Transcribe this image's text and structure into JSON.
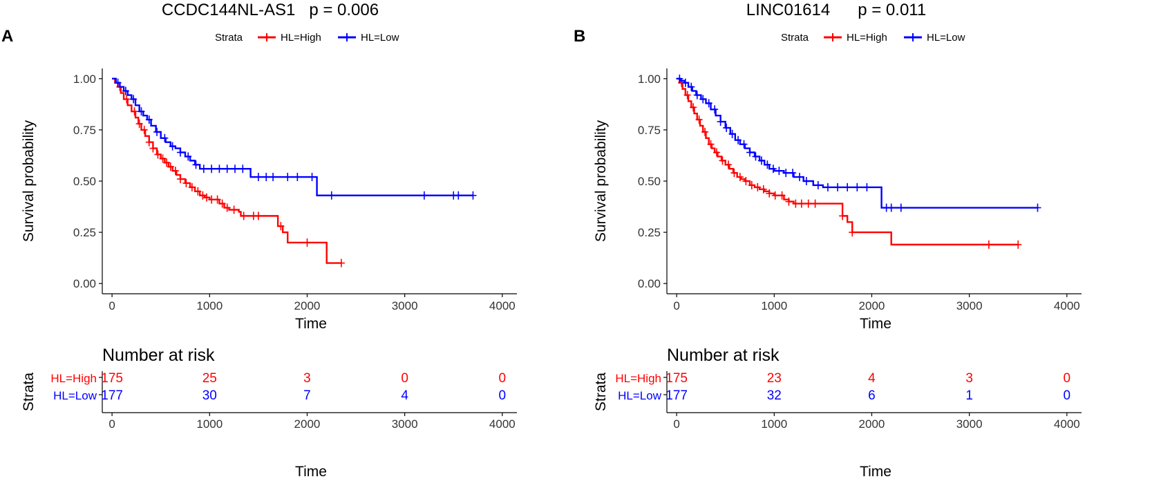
{
  "colors": {
    "high": "#ff0000",
    "low": "#0000ff",
    "axis": "#000000",
    "text": "#000000",
    "tick_text": "#333333"
  },
  "chart_data": [
    {
      "type": "line",
      "panel_label": "A",
      "title": "CCDC144NL-AS1   p = 0.006",
      "legend": {
        "title": "Strata",
        "placement": "top",
        "entries": [
          "HL=High",
          "HL=Low"
        ]
      },
      "xlabel": "Time",
      "ylabel": "Survival probability",
      "xlim": [
        -100,
        4150
      ],
      "ylim": [
        -0.05,
        1.05
      ],
      "x_ticks": [
        0,
        1000,
        2000,
        3000,
        4000
      ],
      "x_tick_labels": [
        "0",
        "1000",
        "2000",
        "3000",
        "4000"
      ],
      "y_ticks": [
        0,
        0.25,
        0.5,
        0.75,
        1.0
      ],
      "y_tick_labels": [
        "0.00",
        "0.25",
        "0.50",
        "0.75",
        "1.00"
      ],
      "series": [
        {
          "name": "HL=High",
          "x": [
            0,
            30,
            60,
            90,
            120,
            160,
            200,
            240,
            270,
            300,
            340,
            380,
            420,
            460,
            500,
            540,
            580,
            620,
            660,
            700,
            750,
            800,
            850,
            900,
            950,
            1000,
            1100,
            1150,
            1200,
            1300,
            1320,
            1400,
            1550,
            1700,
            1750,
            1800,
            1850,
            2000,
            2200,
            2230,
            2350
          ],
          "y": [
            1.0,
            0.98,
            0.96,
            0.93,
            0.9,
            0.87,
            0.84,
            0.81,
            0.78,
            0.75,
            0.72,
            0.69,
            0.66,
            0.63,
            0.61,
            0.59,
            0.57,
            0.55,
            0.53,
            0.51,
            0.49,
            0.47,
            0.45,
            0.43,
            0.42,
            0.41,
            0.39,
            0.37,
            0.36,
            0.35,
            0.33,
            0.33,
            0.33,
            0.28,
            0.25,
            0.2,
            0.2,
            0.2,
            0.1,
            0.1,
            0.1
          ],
          "censor_x": [
            80,
            150,
            230,
            280,
            330,
            380,
            420,
            470,
            520,
            560,
            600,
            650,
            700,
            760,
            820,
            880,
            930,
            970,
            1020,
            1080,
            1130,
            1180,
            1250,
            1350,
            1450,
            1500,
            1730,
            2000,
            2350
          ]
        },
        {
          "name": "HL=Low",
          "x": [
            0,
            40,
            80,
            120,
            160,
            200,
            240,
            280,
            320,
            360,
            400,
            450,
            500,
            550,
            600,
            650,
            700,
            750,
            800,
            850,
            900,
            1000,
            1100,
            1200,
            1300,
            1400,
            1420,
            1600,
            1800,
            2000,
            2100,
            2200,
            3200,
            3500,
            3700
          ],
          "y": [
            1.0,
            0.98,
            0.96,
            0.94,
            0.92,
            0.9,
            0.87,
            0.84,
            0.82,
            0.8,
            0.77,
            0.74,
            0.71,
            0.69,
            0.67,
            0.66,
            0.64,
            0.62,
            0.6,
            0.58,
            0.56,
            0.56,
            0.56,
            0.56,
            0.56,
            0.56,
            0.52,
            0.52,
            0.52,
            0.52,
            0.43,
            0.43,
            0.43,
            0.43,
            0.43
          ],
          "censor_x": [
            60,
            140,
            220,
            300,
            380,
            460,
            540,
            620,
            700,
            780,
            860,
            940,
            1020,
            1100,
            1180,
            1260,
            1340,
            1500,
            1580,
            1650,
            1800,
            1900,
            2050,
            2250,
            3200,
            3500,
            3550,
            3700
          ]
        }
      ],
      "risk_table": {
        "title": "Number at risk",
        "ylabel": "Strata",
        "xlabel": "Time",
        "times": [
          0,
          1000,
          2000,
          3000,
          4000
        ],
        "time_labels": [
          "0",
          "1000",
          "2000",
          "3000",
          "4000"
        ],
        "rows": [
          {
            "name": "HL=High",
            "counts": [
              "175",
              "25",
              "3",
              "0",
              "0"
            ]
          },
          {
            "name": "HL=Low",
            "counts": [
              "177",
              "30",
              "7",
              "4",
              "0"
            ]
          }
        ]
      }
    },
    {
      "type": "line",
      "panel_label": "B",
      "title": "LINC01614      p = 0.011",
      "legend": {
        "title": "Strata",
        "placement": "top",
        "entries": [
          "HL=High",
          "HL=Low"
        ]
      },
      "xlabel": "Time",
      "ylabel": "Survival probability",
      "xlim": [
        -100,
        4150
      ],
      "ylim": [
        -0.05,
        1.05
      ],
      "x_ticks": [
        0,
        1000,
        2000,
        3000,
        4000
      ],
      "x_tick_labels": [
        "0",
        "1000",
        "2000",
        "3000",
        "4000"
      ],
      "y_ticks": [
        0,
        0.25,
        0.5,
        0.75,
        1.0
      ],
      "y_tick_labels": [
        "0.00",
        "0.25",
        "0.50",
        "0.75",
        "1.00"
      ],
      "series": [
        {
          "name": "HL=High",
          "x": [
            0,
            30,
            60,
            90,
            120,
            150,
            180,
            210,
            240,
            270,
            300,
            330,
            360,
            390,
            420,
            460,
            500,
            540,
            580,
            620,
            660,
            700,
            750,
            800,
            850,
            900,
            950,
            1000,
            1100,
            1150,
            1200,
            1400,
            1600,
            1700,
            1750,
            1800,
            2000,
            2200,
            3200,
            3500
          ],
          "y": [
            1.0,
            0.98,
            0.95,
            0.92,
            0.89,
            0.86,
            0.83,
            0.8,
            0.77,
            0.74,
            0.71,
            0.68,
            0.66,
            0.64,
            0.62,
            0.6,
            0.58,
            0.56,
            0.54,
            0.52,
            0.51,
            0.5,
            0.48,
            0.47,
            0.46,
            0.45,
            0.44,
            0.43,
            0.41,
            0.4,
            0.39,
            0.39,
            0.39,
            0.33,
            0.3,
            0.25,
            0.25,
            0.19,
            0.19,
            0.19
          ],
          "censor_x": [
            50,
            110,
            170,
            230,
            290,
            350,
            410,
            470,
            530,
            590,
            650,
            710,
            770,
            830,
            890,
            950,
            1010,
            1080,
            1150,
            1220,
            1280,
            1350,
            1420,
            1700,
            1800,
            3200,
            3500
          ]
        },
        {
          "name": "HL=Low",
          "x": [
            0,
            40,
            80,
            120,
            160,
            200,
            250,
            300,
            350,
            400,
            450,
            500,
            550,
            600,
            650,
            700,
            750,
            800,
            850,
            900,
            950,
            1000,
            1100,
            1200,
            1300,
            1400,
            1500,
            1600,
            1800,
            2000,
            2100,
            2200,
            3700
          ],
          "y": [
            1.0,
            0.99,
            0.98,
            0.96,
            0.94,
            0.92,
            0.9,
            0.88,
            0.85,
            0.82,
            0.79,
            0.76,
            0.73,
            0.7,
            0.68,
            0.66,
            0.64,
            0.62,
            0.6,
            0.58,
            0.56,
            0.55,
            0.54,
            0.52,
            0.5,
            0.48,
            0.47,
            0.47,
            0.47,
            0.47,
            0.37,
            0.37,
            0.37
          ],
          "censor_x": [
            30,
            90,
            150,
            210,
            270,
            330,
            390,
            450,
            510,
            570,
            630,
            690,
            750,
            810,
            870,
            930,
            990,
            1050,
            1120,
            1190,
            1260,
            1330,
            1450,
            1550,
            1650,
            1750,
            1850,
            1950,
            2150,
            2200,
            2300,
            3700
          ]
        }
      ],
      "risk_table": {
        "title": "Number at risk",
        "ylabel": "Strata",
        "xlabel": "Time",
        "times": [
          0,
          1000,
          2000,
          3000,
          4000
        ],
        "time_labels": [
          "0",
          "1000",
          "2000",
          "3000",
          "4000"
        ],
        "rows": [
          {
            "name": "HL=High",
            "counts": [
              "175",
              "23",
              "4",
              "3",
              "0"
            ]
          },
          {
            "name": "HL=Low",
            "counts": [
              "177",
              "32",
              "6",
              "1",
              "0"
            ]
          }
        ]
      }
    }
  ]
}
